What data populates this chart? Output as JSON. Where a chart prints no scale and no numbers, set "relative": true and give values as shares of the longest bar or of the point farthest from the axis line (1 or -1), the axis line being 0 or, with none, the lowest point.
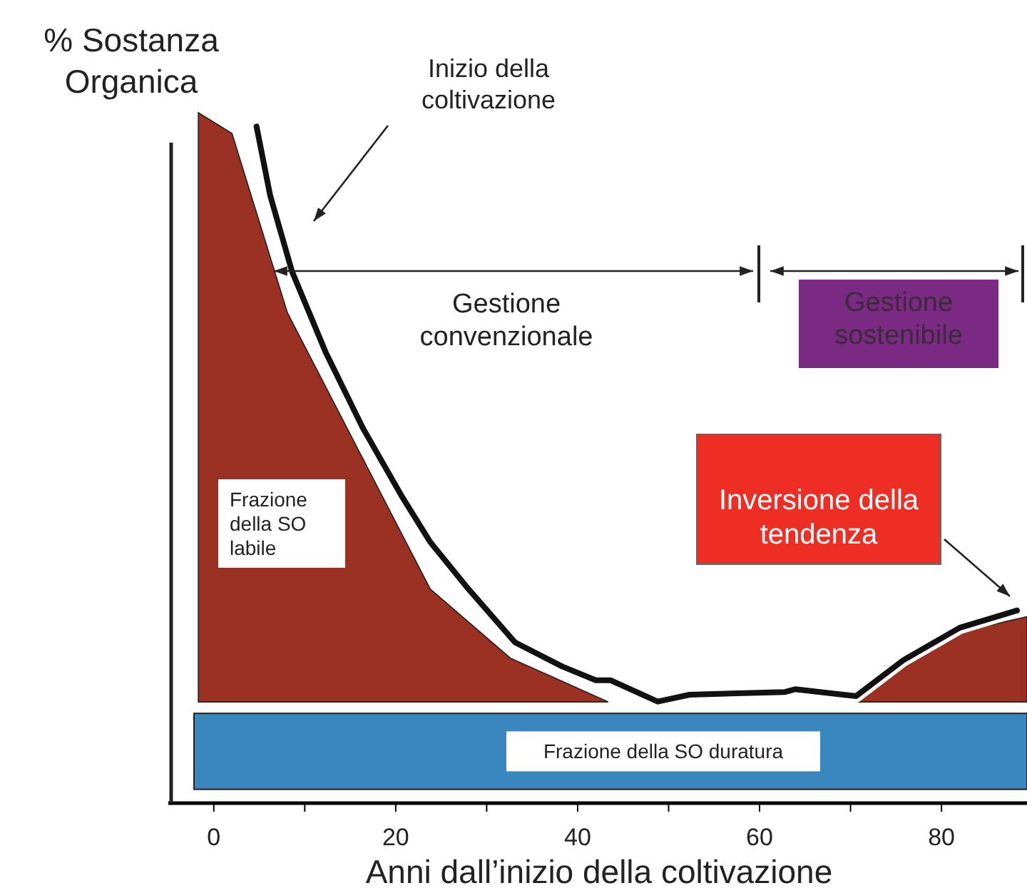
{
  "chart_data": {
    "type": "line",
    "relative": true,
    "ylabel": "% Sostanza Organica",
    "xlabel": "Anni dall’inizio della coltivazione",
    "xlim": [
      -5,
      89.4
    ],
    "xticks": [
      0,
      {
        "value": 10,
        "label": null
      },
      20,
      {
        "value": 30,
        "label": null
      },
      40,
      {
        "value": 50,
        "label": null
      },
      60,
      {
        "value": 70,
        "label": null
      },
      80
    ],
    "series": [
      {
        "type": "area",
        "name": "Frazione della SO labile",
        "color": "#9b3122",
        "x": [
          -1.7,
          2.0,
          8.1,
          23.8,
          32.6,
          43.3,
          50,
          70.6,
          73.8,
          82,
          89.4
        ],
        "values": [
          1.0,
          0.97,
          0.71,
          0.31,
          0.21,
          0.147,
          null,
          0.147,
          0.198,
          0.248,
          0.27
        ]
      },
      {
        "color": "#111111",
        "x": [
          4.7,
          6.2,
          8.6,
          12.3,
          16.4,
          20.6,
          23.8,
          28,
          33.1,
          38.3,
          42,
          43.6,
          48.8,
          52.3,
          62.8,
          63.9,
          70.6,
          75.8,
          82,
          86.3,
          88.3
        ],
        "values": [
          0.98,
          0.88,
          0.77,
          0.653,
          0.543,
          0.446,
          0.378,
          0.31,
          0.233,
          0.198,
          0.178,
          0.178,
          0.147,
          0.157,
          0.161,
          0.165,
          0.155,
          0.207,
          0.254,
          0.271,
          0.279
        ]
      }
    ],
    "bands": [
      {
        "axis": "y",
        "from": 0.02,
        "to": 0.13,
        "label": "Frazione della SO duratura",
        "color": "#3a87c0"
      }
    ],
    "annotations": [
      "Inizio della coltivazione",
      "Gestione convenzionale",
      "Gestione sostenibile",
      "Inversione della tendenza"
    ]
  }
}
